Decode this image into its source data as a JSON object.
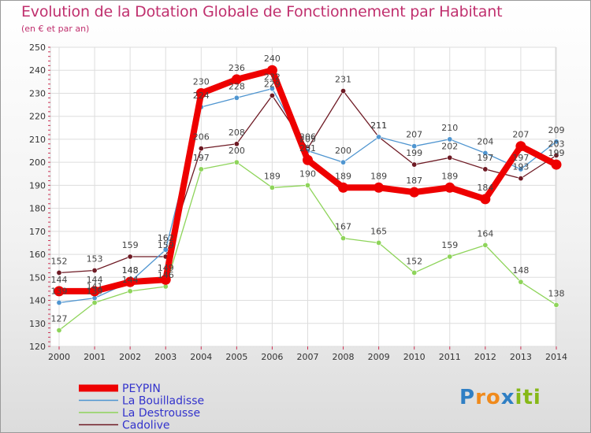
{
  "title": "Evolution de la Dotation Globale de Fonctionnement par Habitant",
  "subtitle": "(en € et par an)",
  "logo": {
    "text": "Proxiti",
    "letters": [
      "P",
      "r",
      "o",
      "x",
      "i",
      "t",
      "i"
    ],
    "colors": [
      "#2f7fc4",
      "#f08a1c",
      "#f08a1c",
      "#2f7fc4",
      "#86b817",
      "#86b817",
      "#86b817"
    ]
  },
  "chart_data": {
    "type": "line",
    "title": "Evolution de la Dotation Globale de Fonctionnement par Habitant",
    "subtitle": "(en € et par an)",
    "xlabel": "",
    "ylabel": "",
    "x": [
      "2000",
      "2001",
      "2002",
      "2003",
      "2004",
      "2005",
      "2006",
      "2007",
      "2008",
      "2009",
      "2010",
      "2011",
      "2012",
      "2013",
      "2014"
    ],
    "ylim": [
      120,
      250
    ],
    "yticks": [
      "120",
      "130",
      "140",
      "150",
      "160",
      "170",
      "180",
      "190",
      "200",
      "210",
      "220",
      "230",
      "240",
      "250"
    ],
    "grid": true,
    "legend_position": "bottom-left",
    "series": [
      {
        "name": "PEYPIN",
        "color": "#ee0000",
        "values": [
          144,
          144,
          148,
          149,
          230,
          236,
          240,
          201,
          189,
          189,
          187,
          189,
          184,
          207,
          199
        ],
        "labels": [
          "144",
          "144",
          "148",
          "149",
          "230",
          "236",
          "240",
          "201",
          "189",
          "189",
          "187",
          "189",
          "184",
          "207",
          "199"
        ]
      },
      {
        "name": "La Bouilladisse",
        "color": "#4f95d0",
        "values": [
          139,
          141,
          148,
          162,
          224,
          228,
          232,
          205,
          200,
          211,
          207,
          210,
          204,
          197,
          209
        ],
        "labels": [
          "139",
          "141",
          "148",
          "162",
          "224",
          "228",
          "232",
          "205",
          "200",
          "211",
          "207",
          "210",
          "204",
          "197",
          "209"
        ]
      },
      {
        "name": "La Destrousse",
        "color": "#8ed45a",
        "values": [
          127,
          139,
          144,
          146,
          197,
          200,
          189,
          190,
          167,
          165,
          152,
          159,
          164,
          148,
          138
        ],
        "labels": [
          "127",
          "139",
          "144",
          "146",
          "197",
          "200",
          "189",
          "190",
          "167",
          "165",
          "152",
          "159",
          "164",
          "148",
          "138"
        ]
      },
      {
        "name": "Cadolive",
        "color": "#6e1a24",
        "values": [
          152,
          153,
          159,
          159,
          206,
          208,
          229,
          206,
          231,
          211,
          199,
          202,
          197,
          193,
          203
        ],
        "labels": [
          "152",
          "153",
          "159",
          "159",
          "206",
          "208",
          "229",
          "206",
          "231",
          "211",
          "199",
          "202",
          "197",
          "193",
          "203"
        ]
      }
    ]
  }
}
